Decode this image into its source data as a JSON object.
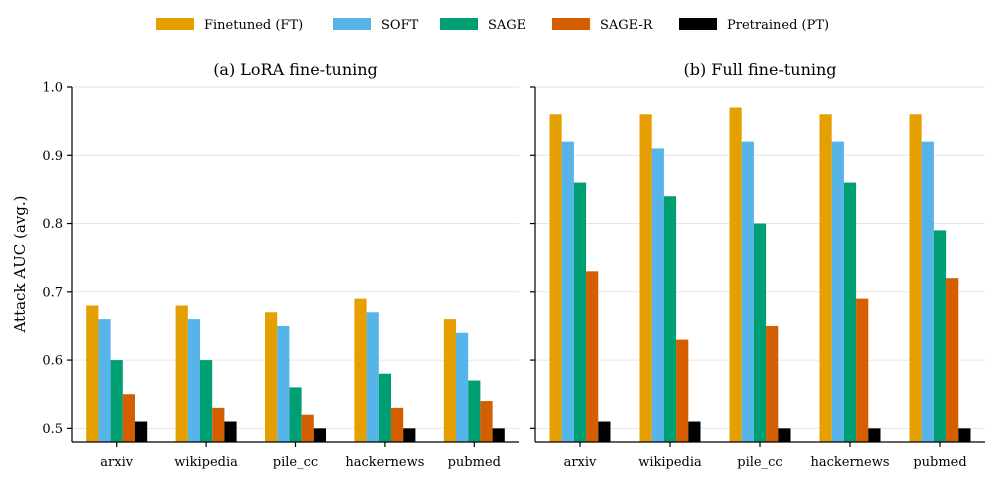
{
  "chart_data": {
    "type": "bar",
    "ylabel": "Attack AUC (avg.)",
    "ylim": [
      0.48,
      1.0
    ],
    "yticks": [
      "0.5",
      "0.6",
      "0.7",
      "0.8",
      "0.9",
      "1.0"
    ],
    "ytick_values": [
      0.5,
      0.6,
      0.7,
      0.8,
      0.9,
      1.0
    ],
    "grid": true,
    "legend_position": "top",
    "legend": [
      {
        "name": "Finetuned (FT)",
        "color": "#E69F00"
      },
      {
        "name": "SOFT",
        "color": "#56B4E9"
      },
      {
        "name": "SAGE",
        "color": "#009E73"
      },
      {
        "name": "SAGE-R",
        "color": "#D55E00"
      },
      {
        "name": "Pretrained (PT)",
        "color": "#000000"
      }
    ],
    "panels": [
      {
        "title": "(a) LoRA fine-tuning",
        "categories": [
          "arxiv",
          "wikipedia",
          "pile_cc",
          "hackernews",
          "pubmed"
        ],
        "series": [
          {
            "name": "Finetuned (FT)",
            "values": [
              0.68,
              0.68,
              0.67,
              0.69,
              0.66
            ]
          },
          {
            "name": "SOFT",
            "values": [
              0.66,
              0.66,
              0.65,
              0.67,
              0.64
            ]
          },
          {
            "name": "SAGE",
            "values": [
              0.6,
              0.6,
              0.56,
              0.58,
              0.57
            ]
          },
          {
            "name": "SAGE-R",
            "values": [
              0.55,
              0.53,
              0.52,
              0.53,
              0.54
            ]
          },
          {
            "name": "Pretrained (PT)",
            "values": [
              0.51,
              0.51,
              0.5,
              0.5,
              0.5
            ]
          }
        ]
      },
      {
        "title": "(b) Full fine-tuning",
        "categories": [
          "arxiv",
          "wikipedia",
          "pile_cc",
          "hackernews",
          "pubmed"
        ],
        "series": [
          {
            "name": "Finetuned (FT)",
            "values": [
              0.96,
              0.96,
              0.97,
              0.96,
              0.96
            ]
          },
          {
            "name": "SOFT",
            "values": [
              0.92,
              0.91,
              0.92,
              0.92,
              0.92
            ]
          },
          {
            "name": "SAGE",
            "values": [
              0.86,
              0.84,
              0.8,
              0.86,
              0.79
            ]
          },
          {
            "name": "SAGE-R",
            "values": [
              0.73,
              0.63,
              0.65,
              0.69,
              0.72
            ]
          },
          {
            "name": "Pretrained (PT)",
            "values": [
              0.51,
              0.51,
              0.5,
              0.5,
              0.5
            ]
          }
        ]
      }
    ]
  }
}
